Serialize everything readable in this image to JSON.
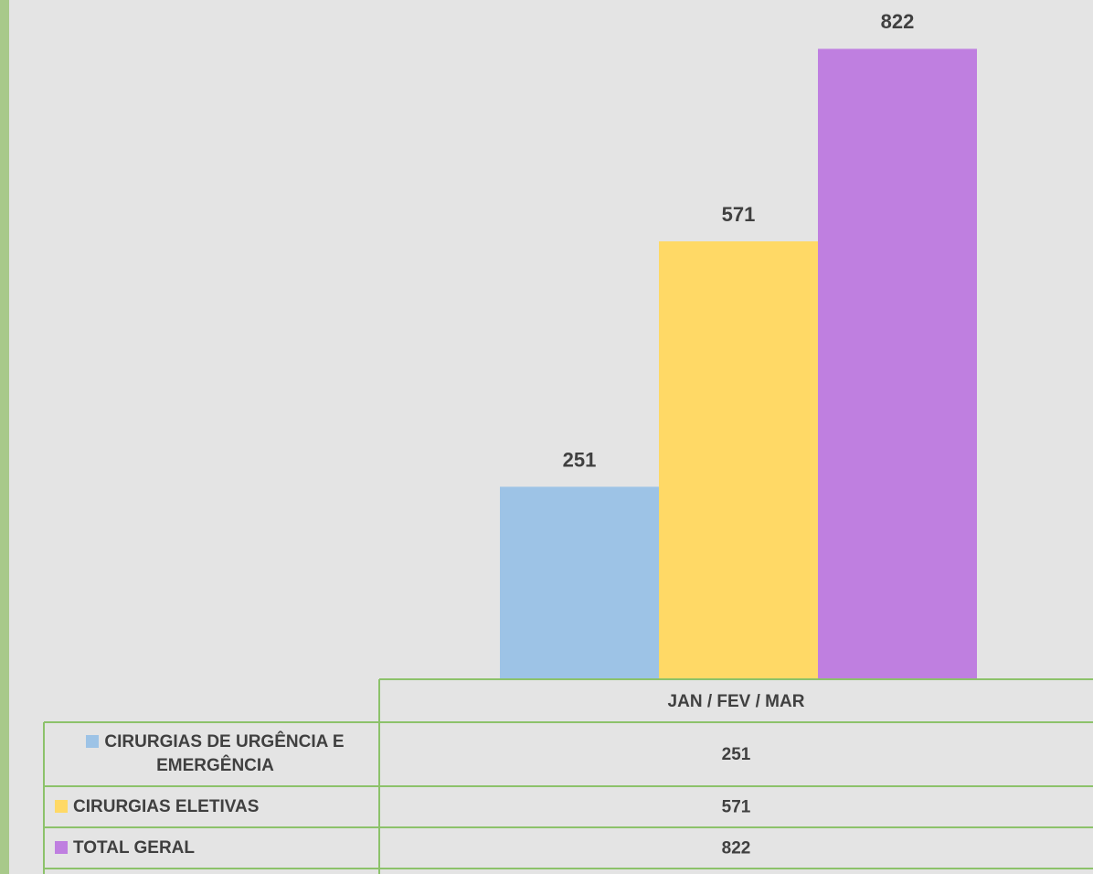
{
  "chart_data": {
    "type": "bar",
    "categories": [
      "JAN / FEV / MAR"
    ],
    "series": [
      {
        "name": "CIRURGIAS DE URGÊNCIA E EMERGÊNCIA",
        "color": "#9dc3e6",
        "values": [
          251
        ]
      },
      {
        "name": "CIRURGIAS ELETIVAS",
        "color": "#ffd966",
        "values": [
          571
        ]
      },
      {
        "name": "TOTAL GERAL",
        "color": "#bf7fe0",
        "values": [
          822
        ]
      }
    ],
    "ylim": [
      0,
      900
    ]
  }
}
